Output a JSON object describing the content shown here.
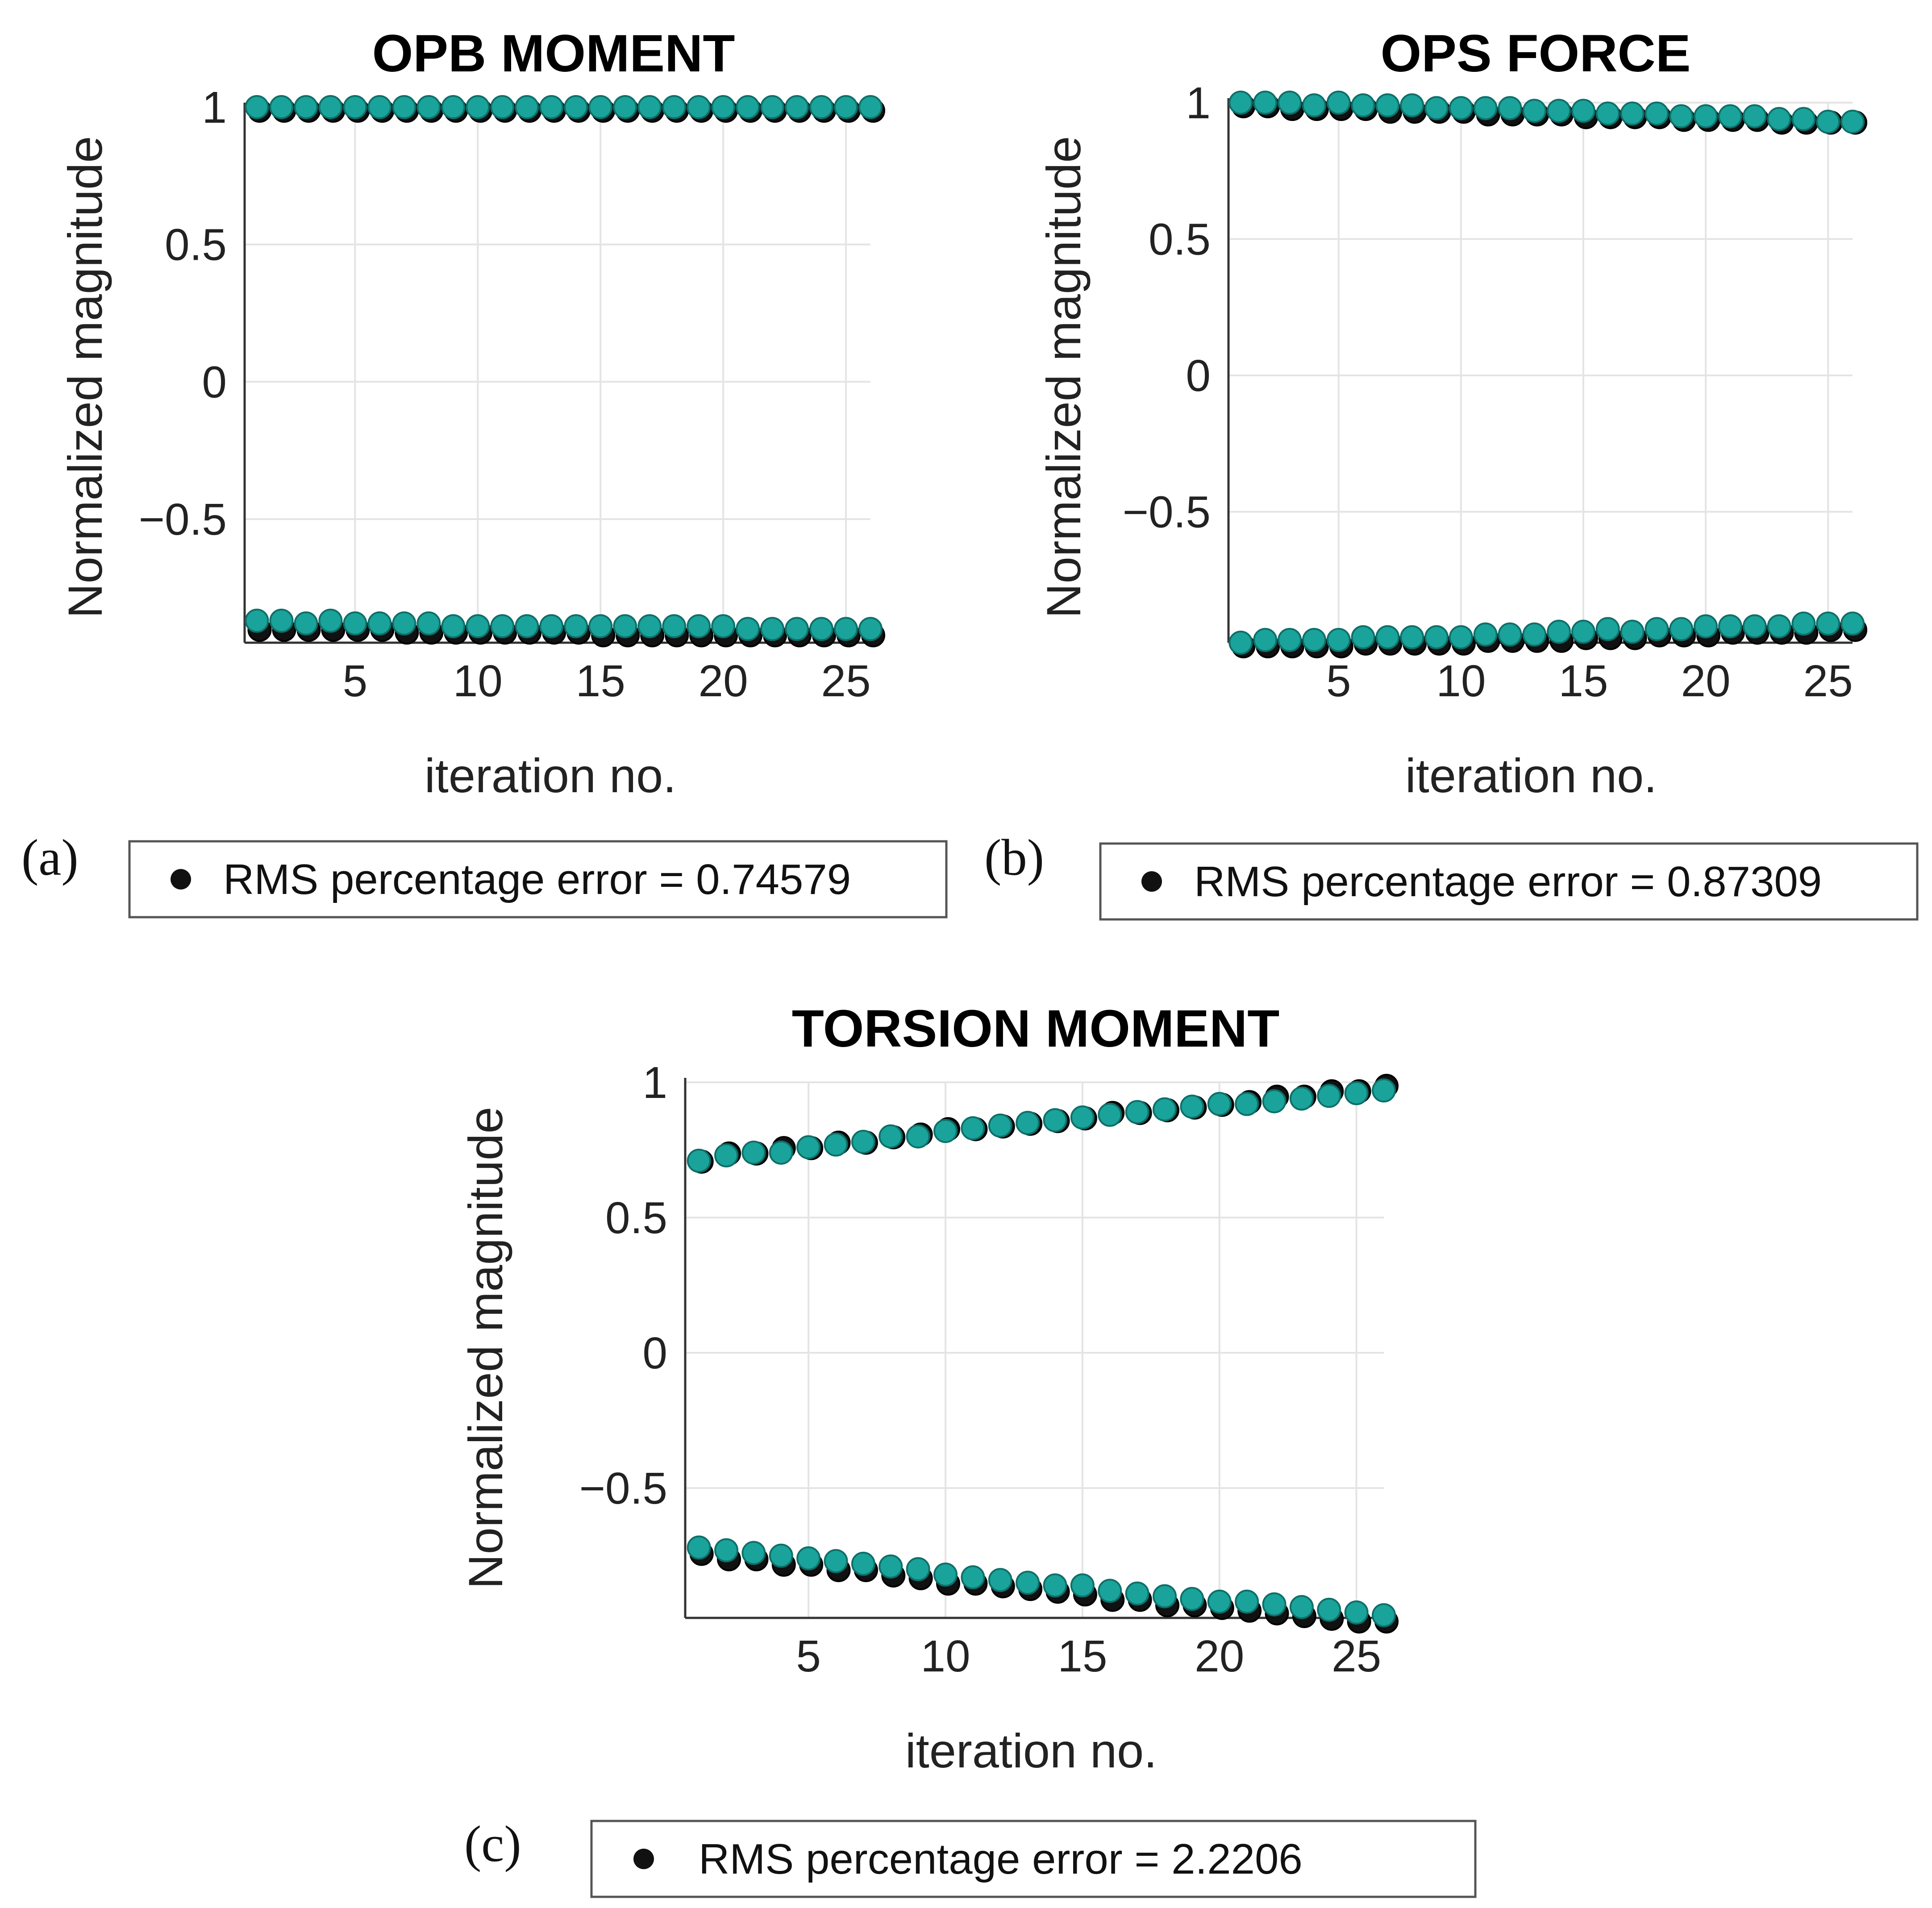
{
  "colors": {
    "measured": "#111111",
    "predicted": "#1aa39a",
    "predicted_edge": "#0e6f69",
    "grid": "#e4e4e4",
    "axis": "#333333",
    "legend_border": "#555555"
  },
  "chart_data": [
    {
      "type": "scatter",
      "panel_label": "(a)",
      "title": "OPB MOMENT",
      "xlabel": "iteration no.",
      "ylabel": "Normalized magnitude",
      "xlim": [
        0.5,
        26
      ],
      "ylim": [
        -0.95,
        1.0
      ],
      "xticks": [
        5,
        10,
        15,
        20,
        25
      ],
      "yticks": [
        1,
        0.5,
        0,
        -0.5
      ],
      "ytick_labels": [
        "1",
        "0.5",
        "0",
        "−0.5"
      ],
      "grid": true,
      "legend_label": "RMS percentage error = 0.74579",
      "series": [
        {
          "name": "measured upper",
          "role": "measured",
          "x": [
            1,
            2,
            3,
            4,
            5,
            6,
            7,
            8,
            9,
            10,
            11,
            12,
            13,
            14,
            15,
            16,
            17,
            18,
            19,
            20,
            21,
            22,
            23,
            24,
            25,
            26
          ],
          "values": [
            1,
            1,
            1,
            1,
            1,
            1,
            1,
            1,
            1,
            1,
            1,
            1,
            1,
            1,
            1,
            1,
            1,
            1,
            1,
            1,
            1,
            1,
            1,
            1,
            1,
            1
          ]
        },
        {
          "name": "predicted upper",
          "role": "predicted",
          "x": [
            1,
            2,
            3,
            4,
            5,
            6,
            7,
            8,
            9,
            10,
            11,
            12,
            13,
            14,
            15,
            16,
            17,
            18,
            19,
            20,
            21,
            22,
            23,
            24,
            25,
            26
          ],
          "values": [
            1,
            1,
            1,
            1,
            1,
            1,
            1,
            1,
            1,
            1,
            1,
            1,
            1,
            1,
            1,
            1,
            1,
            1,
            1,
            1,
            1,
            1,
            1,
            1,
            1,
            1
          ]
        },
        {
          "name": "measured lower",
          "role": "measured",
          "x": [
            1,
            2,
            3,
            4,
            5,
            6,
            7,
            8,
            9,
            10,
            11,
            12,
            13,
            14,
            15,
            16,
            17,
            18,
            19,
            20,
            21,
            22,
            23,
            24,
            25,
            26
          ],
          "values": [
            -0.89,
            -0.89,
            -0.89,
            -0.89,
            -0.89,
            -0.89,
            -0.9,
            -0.9,
            -0.9,
            -0.9,
            -0.9,
            -0.9,
            -0.9,
            -0.9,
            -0.91,
            -0.91,
            -0.91,
            -0.91,
            -0.91,
            -0.91,
            -0.91,
            -0.91,
            -0.91,
            -0.91,
            -0.91,
            -0.91
          ]
        },
        {
          "name": "predicted lower",
          "role": "predicted",
          "x": [
            1,
            2,
            3,
            4,
            5,
            6,
            7,
            8,
            9,
            10,
            11,
            12,
            13,
            14,
            15,
            16,
            17,
            18,
            19,
            20,
            21,
            22,
            23,
            24,
            25,
            26
          ],
          "values": [
            -0.87,
            -0.87,
            -0.88,
            -0.87,
            -0.88,
            -0.88,
            -0.88,
            -0.88,
            -0.89,
            -0.89,
            -0.89,
            -0.89,
            -0.89,
            -0.89,
            -0.89,
            -0.89,
            -0.89,
            -0.89,
            -0.89,
            -0.89,
            -0.9,
            -0.9,
            -0.9,
            -0.9,
            -0.9,
            -0.9
          ]
        }
      ]
    },
    {
      "type": "scatter",
      "panel_label": "(b)",
      "title": "OPS FORCE",
      "xlabel": "iteration no.",
      "ylabel": "Normalized magnitude",
      "xlim": [
        0.5,
        26
      ],
      "ylim": [
        -0.98,
        1.0
      ],
      "xticks": [
        5,
        10,
        15,
        20,
        25
      ],
      "yticks": [
        1,
        0.5,
        0,
        -0.5
      ],
      "ytick_labels": [
        "1",
        "0.5",
        "0",
        "−0.5"
      ],
      "grid": true,
      "legend_label": "RMS percentage error = 0.87309",
      "series": [
        {
          "name": "measured upper",
          "role": "measured",
          "x": [
            1,
            2,
            3,
            4,
            5,
            6,
            7,
            8,
            9,
            10,
            11,
            12,
            13,
            14,
            15,
            16,
            17,
            18,
            19,
            20,
            21,
            22,
            23,
            24,
            25,
            26
          ],
          "values": [
            1,
            1,
            0.99,
            0.99,
            0.99,
            0.99,
            0.98,
            0.98,
            0.98,
            0.98,
            0.97,
            0.97,
            0.97,
            0.97,
            0.96,
            0.96,
            0.96,
            0.96,
            0.95,
            0.95,
            0.95,
            0.95,
            0.94,
            0.94,
            0.94,
            0.94
          ]
        },
        {
          "name": "predicted upper",
          "role": "predicted",
          "x": [
            1,
            2,
            3,
            4,
            5,
            6,
            7,
            8,
            9,
            10,
            11,
            12,
            13,
            14,
            15,
            16,
            17,
            18,
            19,
            20,
            21,
            22,
            23,
            24,
            25,
            26
          ],
          "values": [
            1,
            1,
            1,
            0.99,
            1,
            0.99,
            0.99,
            0.99,
            0.98,
            0.98,
            0.98,
            0.98,
            0.97,
            0.97,
            0.97,
            0.96,
            0.96,
            0.96,
            0.95,
            0.95,
            0.95,
            0.95,
            0.94,
            0.94,
            0.93,
            0.93
          ]
        },
        {
          "name": "measured lower",
          "role": "measured",
          "x": [
            1,
            2,
            3,
            4,
            5,
            6,
            7,
            8,
            9,
            10,
            11,
            12,
            13,
            14,
            15,
            16,
            17,
            18,
            19,
            20,
            21,
            22,
            23,
            24,
            25,
            26
          ],
          "values": [
            -0.98,
            -0.98,
            -0.98,
            -0.98,
            -0.98,
            -0.97,
            -0.97,
            -0.97,
            -0.97,
            -0.97,
            -0.96,
            -0.96,
            -0.96,
            -0.96,
            -0.95,
            -0.95,
            -0.95,
            -0.94,
            -0.94,
            -0.94,
            -0.93,
            -0.93,
            -0.93,
            -0.93,
            -0.92,
            -0.92
          ]
        },
        {
          "name": "predicted lower",
          "role": "predicted",
          "x": [
            1,
            2,
            3,
            4,
            5,
            6,
            7,
            8,
            9,
            10,
            11,
            12,
            13,
            14,
            15,
            16,
            17,
            18,
            19,
            20,
            21,
            22,
            23,
            24,
            25,
            26
          ],
          "values": [
            -0.98,
            -0.97,
            -0.97,
            -0.97,
            -0.97,
            -0.96,
            -0.96,
            -0.96,
            -0.96,
            -0.96,
            -0.95,
            -0.95,
            -0.95,
            -0.94,
            -0.94,
            -0.93,
            -0.94,
            -0.93,
            -0.93,
            -0.92,
            -0.92,
            -0.92,
            -0.92,
            -0.91,
            -0.91,
            -0.91
          ]
        }
      ]
    },
    {
      "type": "scatter",
      "panel_label": "(c)",
      "title": "TORSION MOMENT",
      "xlabel": "iteration no.",
      "ylabel": "Normalized magnitude",
      "xlim": [
        0.5,
        26
      ],
      "ylim": [
        -0.98,
        1.0
      ],
      "xticks": [
        5,
        10,
        15,
        20,
        25
      ],
      "yticks": [
        1,
        0.5,
        0,
        -0.5
      ],
      "ytick_labels": [
        "1",
        "0.5",
        "0",
        "−0.5"
      ],
      "grid": true,
      "legend_label": "RMS percentage error = 2.2206",
      "series": [
        {
          "name": "measured upper",
          "role": "measured",
          "x": [
            1,
            2,
            3,
            4,
            5,
            6,
            7,
            8,
            9,
            10,
            11,
            12,
            13,
            14,
            15,
            16,
            17,
            18,
            19,
            20,
            21,
            22,
            23,
            24,
            25,
            26
          ],
          "values": [
            0.72,
            0.75,
            0.75,
            0.77,
            0.77,
            0.79,
            0.79,
            0.81,
            0.82,
            0.84,
            0.84,
            0.85,
            0.86,
            0.87,
            0.88,
            0.9,
            0.9,
            0.91,
            0.92,
            0.93,
            0.94,
            0.96,
            0.96,
            0.98,
            0.98,
            1.0
          ]
        },
        {
          "name": "predicted upper",
          "role": "predicted",
          "x": [
            1,
            2,
            3,
            4,
            5,
            6,
            7,
            8,
            9,
            10,
            11,
            12,
            13,
            14,
            15,
            16,
            17,
            18,
            19,
            20,
            21,
            22,
            23,
            24,
            25,
            26
          ],
          "values": [
            0.71,
            0.73,
            0.74,
            0.74,
            0.76,
            0.77,
            0.78,
            0.8,
            0.8,
            0.82,
            0.83,
            0.84,
            0.85,
            0.86,
            0.87,
            0.88,
            0.89,
            0.9,
            0.91,
            0.92,
            0.92,
            0.93,
            0.94,
            0.95,
            0.96,
            0.97
          ]
        },
        {
          "name": "measured lower",
          "role": "measured",
          "x": [
            1,
            2,
            3,
            4,
            5,
            6,
            7,
            8,
            9,
            10,
            11,
            12,
            13,
            14,
            15,
            16,
            17,
            18,
            19,
            20,
            21,
            22,
            23,
            24,
            25,
            26
          ],
          "values": [
            -0.73,
            -0.75,
            -0.75,
            -0.77,
            -0.77,
            -0.79,
            -0.79,
            -0.81,
            -0.82,
            -0.84,
            -0.84,
            -0.85,
            -0.86,
            -0.87,
            -0.88,
            -0.9,
            -0.9,
            -0.92,
            -0.92,
            -0.93,
            -0.94,
            -0.95,
            -0.96,
            -0.97,
            -0.98,
            -0.98
          ]
        },
        {
          "name": "predicted lower",
          "role": "predicted",
          "x": [
            1,
            2,
            3,
            4,
            5,
            6,
            7,
            8,
            9,
            10,
            11,
            12,
            13,
            14,
            15,
            16,
            17,
            18,
            19,
            20,
            21,
            22,
            23,
            24,
            25,
            26
          ],
          "values": [
            -0.72,
            -0.73,
            -0.74,
            -0.75,
            -0.76,
            -0.77,
            -0.78,
            -0.79,
            -0.8,
            -0.82,
            -0.83,
            -0.84,
            -0.85,
            -0.86,
            -0.86,
            -0.88,
            -0.89,
            -0.9,
            -0.91,
            -0.92,
            -0.92,
            -0.93,
            -0.94,
            -0.95,
            -0.96,
            -0.97
          ]
        }
      ]
    }
  ]
}
